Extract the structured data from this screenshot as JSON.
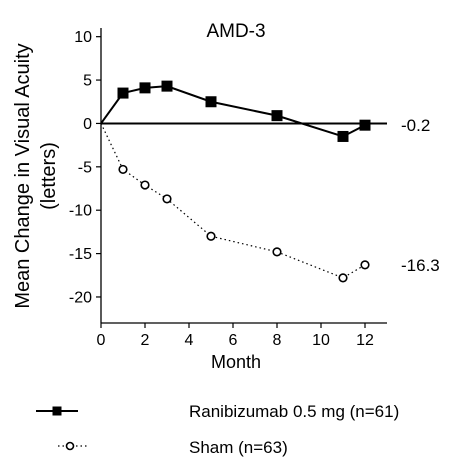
{
  "chart_data": {
    "type": "line",
    "title": "AMD-3",
    "xlabel": "Month",
    "ylabel_lines": [
      "Mean Change in Visual Acuity",
      "(letters)"
    ],
    "xlim": [
      0,
      13
    ],
    "ylim": [
      -23,
      11
    ],
    "xticks": [
      0,
      2,
      4,
      6,
      8,
      10,
      12
    ],
    "yticks": [
      10,
      5,
      0,
      -5,
      -10,
      -15,
      -20
    ],
    "grid": false,
    "legend_position": "bottom",
    "series": [
      {
        "name": "Ranibizumab 0.5 mg (n=61)",
        "marker": "filled-square",
        "line_style": "solid",
        "color": "#000000",
        "x": [
          0,
          1,
          2,
          3,
          5,
          8,
          11,
          12
        ],
        "y": [
          0,
          3.5,
          4.1,
          4.3,
          2.5,
          0.9,
          -1.5,
          -0.2
        ],
        "end_label": "-0.2"
      },
      {
        "name": "Sham (n=63)",
        "marker": "open-circle",
        "line_style": "dotted",
        "color": "#000000",
        "x": [
          0,
          1,
          2,
          3,
          5,
          8,
          11,
          12
        ],
        "y": [
          0,
          -5.3,
          -7.1,
          -8.7,
          -13.0,
          -14.8,
          -17.8,
          -16.3
        ],
        "end_label": "-16.3"
      }
    ]
  }
}
